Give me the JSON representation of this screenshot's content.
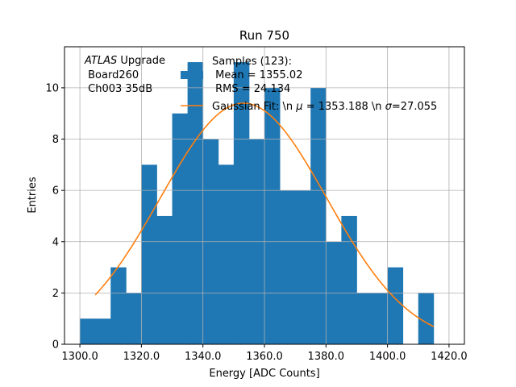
{
  "chart_data": {
    "type": "bar",
    "title": "Run 750",
    "xlabel": "Energy [ADC Counts]",
    "ylabel": "Entries",
    "xlim": [
      1295,
      1425
    ],
    "ylim": [
      0,
      11.6
    ],
    "x_ticks": [
      1300,
      1320,
      1340,
      1360,
      1380,
      1400,
      1420
    ],
    "x_tick_labels": [
      "1300.0",
      "1320.0",
      "1340.0",
      "1360.0",
      "1380.0",
      "1400.0",
      "1420.0"
    ],
    "y_ticks": [
      0,
      2,
      4,
      6,
      8,
      10
    ],
    "y_tick_labels": [
      "0",
      "2",
      "4",
      "6",
      "8",
      "10"
    ],
    "grid": true,
    "bar_color": "#1f77b4",
    "fit_color": "#ff7f0e",
    "bin_width": 5,
    "bin_edges": [
      1300,
      1305,
      1310,
      1315,
      1320,
      1325,
      1330,
      1335,
      1340,
      1345,
      1350,
      1355,
      1360,
      1365,
      1370,
      1375,
      1380,
      1385,
      1390,
      1395,
      1400,
      1405,
      1410,
      1415,
      1420
    ],
    "values": [
      1,
      1,
      3,
      2,
      7,
      5,
      9,
      11,
      8,
      7,
      11,
      8,
      10,
      6,
      6,
      10,
      4,
      5,
      2,
      2,
      3,
      0,
      2,
      0
    ],
    "fit": {
      "amplitude": 9.4,
      "mu": 1353.188,
      "sigma": 27.055,
      "x_range": [
        1305,
        1415
      ]
    },
    "annotation": {
      "lines": [
        "ATLAS Upgrade",
        " Board260",
        " Ch003 35dB"
      ],
      "italic_word": "ATLAS",
      "rest_first_line": " Upgrade"
    },
    "legend": {
      "placement": "top-center",
      "samples_label": "Samples (123):",
      "mean_label": " Mean = 1355.02",
      "rms_label": " RMS = 24.134",
      "fit_label_prefix": "Gaussian Fit: \\n ",
      "fit_mu_symbol": "μ",
      "fit_mu_text": " = 1353.188 \\n ",
      "fit_sigma_symbol": "σ",
      "fit_sigma_text": "=27.055"
    }
  }
}
